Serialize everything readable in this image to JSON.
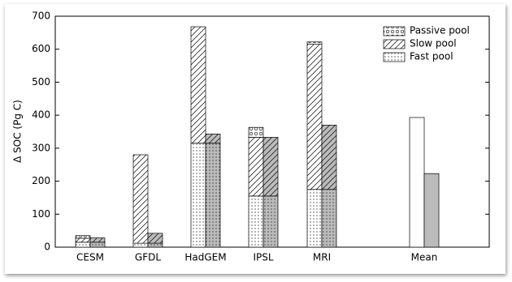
{
  "chart_data": {
    "type": "stacked-bar-pairs",
    "y_label": "Δ SOC (Pg C)",
    "categories": [
      "CESM",
      "GFDL",
      "HadGEM",
      "IPSL",
      "MRI",
      "Mean"
    ],
    "bar_colors": [
      "#ffffff",
      "#bbbbbb"
    ],
    "series": [
      {
        "name": "Fast pool",
        "pattern": "dots",
        "values": [
          15,
          12,
          315,
          155,
          175,
          null
        ],
        "values_gray": [
          15,
          12,
          315,
          155,
          175,
          null
        ]
      },
      {
        "name": "Slow pool",
        "pattern": "hatch",
        "values": [
          12,
          268,
          353,
          178,
          440,
          null
        ],
        "values_gray": [
          13,
          30,
          28,
          178,
          195,
          null
        ]
      },
      {
        "name": "Passive pool",
        "pattern": "circles",
        "values": [
          8,
          null,
          null,
          30,
          7,
          null
        ],
        "values_gray": [
          null,
          null,
          null,
          null,
          null,
          null
        ]
      }
    ],
    "unpartitioned": {
      "values": [
        null,
        null,
        null,
        null,
        null,
        393
      ],
      "values_gray": [
        null,
        null,
        null,
        null,
        null,
        223
      ]
    },
    "ylim": [
      0,
      700
    ],
    "yticks": [
      0,
      100,
      200,
      300,
      400,
      500,
      600,
      700
    ],
    "legend": "upper right"
  }
}
